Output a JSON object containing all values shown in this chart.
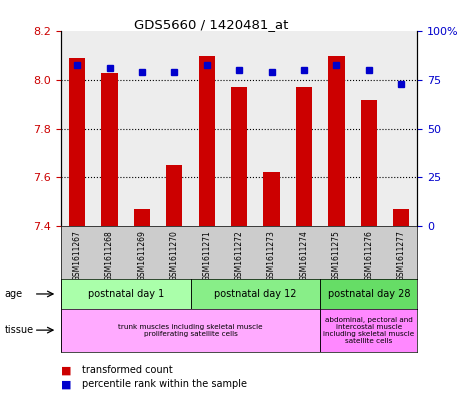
{
  "title": "GDS5660 / 1420481_at",
  "samples": [
    "GSM1611267",
    "GSM1611268",
    "GSM1611269",
    "GSM1611270",
    "GSM1611271",
    "GSM1611272",
    "GSM1611273",
    "GSM1611274",
    "GSM1611275",
    "GSM1611276",
    "GSM1611277"
  ],
  "transformed_count": [
    8.09,
    8.03,
    7.47,
    7.65,
    8.1,
    7.97,
    7.62,
    7.97,
    8.1,
    7.92,
    7.47
  ],
  "percentile_rank": [
    83,
    81,
    79,
    79,
    83,
    80,
    79,
    80,
    83,
    80,
    73
  ],
  "ylim_left": [
    7.4,
    8.2
  ],
  "ylim_right": [
    0,
    100
  ],
  "yticks_left": [
    7.4,
    7.6,
    7.8,
    8.0,
    8.2
  ],
  "yticks_right": [
    0,
    25,
    50,
    75,
    100
  ],
  "bar_color": "#cc0000",
  "dot_color": "#0000cc",
  "age_groups": [
    {
      "label": "postnatal day 1",
      "start": 0,
      "end": 4,
      "color": "#aaffaa"
    },
    {
      "label": "postnatal day 12",
      "start": 4,
      "end": 8,
      "color": "#88ee88"
    },
    {
      "label": "postnatal day 28",
      "start": 8,
      "end": 11,
      "color": "#66dd66"
    }
  ],
  "tissue_groups": [
    {
      "label": "trunk muscles including skeletal muscle\nproliferating satellite cells",
      "start": 0,
      "end": 8,
      "color": "#ffaaff"
    },
    {
      "label": "abdominal, pectoral and\nintercostal muscle\nincluding skeletal muscle\nsatellite cells",
      "start": 8,
      "end": 11,
      "color": "#ff88ff"
    }
  ],
  "legend_bar_label": "transformed count",
  "legend_dot_label": "percentile rank within the sample",
  "tick_label_color_left": "#cc0000",
  "tick_label_color_right": "#0000cc",
  "title_color": "#000000",
  "background_color": "#ffffff",
  "sample_bg_color": "#cccccc"
}
